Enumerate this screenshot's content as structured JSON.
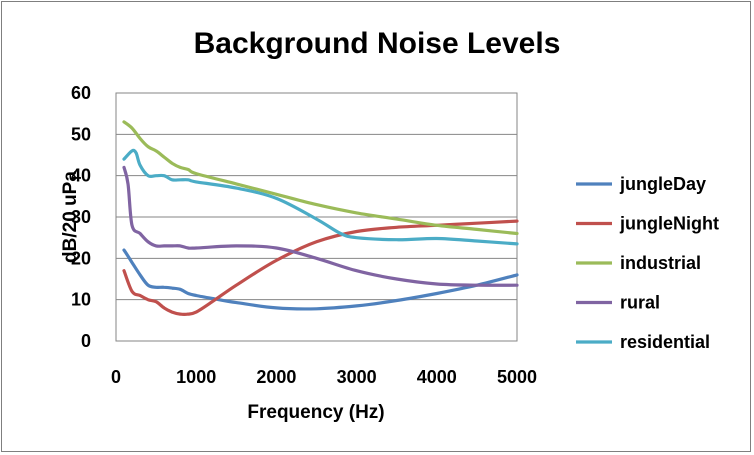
{
  "chart_data": {
    "type": "line",
    "title": "Background  Noise Levels",
    "xlabel": "Frequency (Hz)",
    "ylabel": "dB/20 uPa",
    "xlim": [
      0,
      5000
    ],
    "ylim": [
      0,
      60
    ],
    "xticks": [
      0,
      1000,
      2000,
      3000,
      4000,
      5000
    ],
    "yticks": [
      0,
      10,
      20,
      30,
      40,
      50,
      60
    ],
    "grid": "horizontal",
    "legend_position": "right",
    "series": [
      {
        "name": "jungleDay",
        "color": "#4f81bd",
        "x": [
          100,
          200,
          300,
          400,
          500,
          600,
          700,
          800,
          900,
          1000,
          1200,
          1500,
          2000,
          2500,
          3000,
          3500,
          4000,
          4500,
          5000
        ],
        "y": [
          22,
          19,
          16,
          13.5,
          13,
          13,
          12.8,
          12.5,
          11.5,
          11,
          10.3,
          9.3,
          8,
          7.8,
          8.5,
          9.8,
          11.5,
          13.5,
          16
        ]
      },
      {
        "name": "jungleNight",
        "color": "#c0504d",
        "x": [
          100,
          200,
          300,
          400,
          500,
          600,
          700,
          800,
          900,
          1000,
          1200,
          1500,
          2000,
          2500,
          3000,
          3500,
          4000,
          4500,
          5000
        ],
        "y": [
          17,
          12,
          11,
          10,
          9.5,
          8,
          7,
          6.5,
          6.5,
          7,
          9.5,
          13.5,
          19.5,
          24,
          26.5,
          27.5,
          28,
          28.5,
          29
        ]
      },
      {
        "name": "industrial",
        "color": "#9bbb59",
        "x": [
          100,
          200,
          300,
          400,
          500,
          600,
          700,
          800,
          900,
          1000,
          1500,
          2000,
          2500,
          3000,
          3500,
          4000,
          4500,
          5000
        ],
        "y": [
          53,
          51.5,
          49,
          47,
          46,
          44.5,
          43,
          42,
          41.5,
          40.5,
          38,
          35.5,
          33,
          31,
          29.5,
          28,
          27,
          26
        ]
      },
      {
        "name": "rural",
        "color": "#8064a2",
        "x": [
          100,
          150,
          200,
          300,
          400,
          500,
          600,
          700,
          800,
          900,
          1000,
          1500,
          2000,
          2500,
          3000,
          3500,
          4000,
          4500,
          5000
        ],
        "y": [
          42,
          38,
          28,
          26,
          24,
          23,
          23,
          23,
          23,
          22.5,
          22.5,
          23,
          22.5,
          20,
          17,
          15,
          13.8,
          13.5,
          13.5
        ]
      },
      {
        "name": "residential",
        "color": "#4bacc6",
        "x": [
          100,
          200,
          250,
          300,
          400,
          500,
          600,
          700,
          800,
          900,
          1000,
          1500,
          2000,
          2500,
          2800,
          3000,
          3500,
          4000,
          4500,
          5000
        ],
        "y": [
          44,
          46,
          45.5,
          42.5,
          40,
          40,
          40,
          39,
          39,
          39,
          38.5,
          37,
          34.5,
          29.5,
          26,
          25,
          24.5,
          24.8,
          24.2,
          23.5
        ]
      }
    ]
  }
}
